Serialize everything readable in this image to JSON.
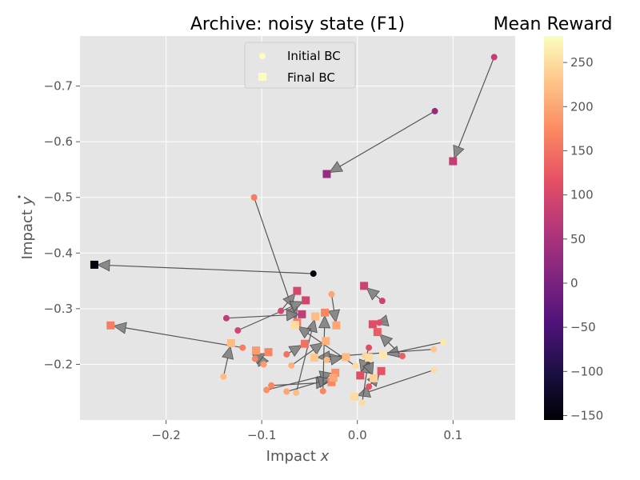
{
  "chart_data": {
    "type": "scatter",
    "title": "Archive: noisy state (F1)",
    "xlabel": "Impact $x$",
    "ylabel": "Impact $\\dot{y}$",
    "xlabel_parts": [
      "Impact ",
      "x"
    ],
    "ylabel_parts": [
      "Impact ",
      "y"
    ],
    "xlim": [
      -0.29,
      0.165
    ],
    "ylim": [
      -0.1,
      -0.79
    ],
    "y_inverted": true,
    "x_ticks": [
      -0.2,
      -0.1,
      0.0,
      0.1
    ],
    "x_tick_labels": [
      "−0.2",
      "−0.1",
      "0.0",
      "0.1"
    ],
    "y_ticks": [
      -0.2,
      -0.3,
      -0.4,
      -0.5,
      -0.6,
      -0.7
    ],
    "y_tick_labels": [
      "−0.2",
      "−0.3",
      "−0.4",
      "−0.5",
      "−0.6",
      "−0.7"
    ],
    "grid": true,
    "legend": {
      "placement": "top-center",
      "entries": [
        "Initial BC",
        "Final BC"
      ]
    },
    "colorbar": {
      "label": "Mean Reward",
      "range": [
        -155,
        280
      ],
      "ticks": [
        -150,
        -100,
        -50,
        0,
        50,
        100,
        150,
        200,
        250
      ],
      "tick_labels": [
        "−150",
        "−100",
        "−50",
        "0",
        "50",
        "100",
        "150",
        "200",
        "250"
      ]
    },
    "colormap": "magma",
    "colors": {
      "background": "#e5e5e5",
      "grid": "#ffffff",
      "arrow": "#555555",
      "arrowhead": "#808080"
    },
    "series": [
      {
        "initial": [
          0.143,
          -0.752
        ],
        "final": [
          0.1,
          -0.565
        ],
        "reward": 80
      },
      {
        "initial": [
          0.081,
          -0.655
        ],
        "final": [
          -0.032,
          -0.542
        ],
        "reward": 30
      },
      {
        "initial": [
          -0.108,
          -0.5
        ],
        "final": [
          -0.063,
          -0.275
        ],
        "reward": 160
      },
      {
        "initial": [
          -0.046,
          -0.363
        ],
        "final": [
          -0.275,
          -0.379
        ],
        "reward": -150
      },
      {
        "initial": [
          -0.027,
          -0.326
        ],
        "final": [
          -0.022,
          -0.27
        ],
        "reward": 200
      },
      {
        "initial": [
          0.026,
          -0.314
        ],
        "final": [
          0.007,
          -0.341
        ],
        "reward": 90
      },
      {
        "initial": [
          -0.08,
          -0.296
        ],
        "final": [
          -0.063,
          -0.332
        ],
        "reward": 100
      },
      {
        "initial": [
          -0.137,
          -0.283
        ],
        "final": [
          -0.058,
          -0.29
        ],
        "reward": 75
      },
      {
        "initial": [
          -0.125,
          -0.261
        ],
        "final": [
          -0.054,
          -0.315
        ],
        "reward": 95
      },
      {
        "initial": [
          0.023,
          -0.275
        ],
        "final": [
          0.016,
          -0.272
        ],
        "reward": 110
      },
      {
        "initial": [
          0.047,
          -0.215
        ],
        "final": [
          0.021,
          -0.258
        ],
        "reward": 130
      },
      {
        "initial": [
          0.09,
          -0.24
        ],
        "final": [
          0.027,
          -0.217
        ],
        "reward": 260
      },
      {
        "initial": [
          0.08,
          -0.227
        ],
        "final": [
          -0.045,
          -0.212
        ],
        "reward": 230
      },
      {
        "initial": [
          0.08,
          -0.19
        ],
        "final": [
          -0.003,
          -0.142
        ],
        "reward": 250
      },
      {
        "initial": [
          -0.14,
          -0.178
        ],
        "final": [
          -0.132,
          -0.238
        ],
        "reward": 220
      },
      {
        "initial": [
          -0.12,
          -0.23
        ],
        "final": [
          -0.258,
          -0.27
        ],
        "reward": 160
      },
      {
        "initial": [
          -0.098,
          -0.2
        ],
        "final": [
          -0.106,
          -0.225
        ],
        "reward": 190
      },
      {
        "initial": [
          -0.107,
          -0.21
        ],
        "final": [
          -0.093,
          -0.222
        ],
        "reward": 170
      },
      {
        "initial": [
          -0.074,
          -0.218
        ],
        "final": [
          -0.055,
          -0.237
        ],
        "reward": 150
      },
      {
        "initial": [
          -0.069,
          -0.198
        ],
        "final": [
          -0.033,
          -0.242
        ],
        "reward": 210
      },
      {
        "initial": [
          -0.095,
          -0.154
        ],
        "final": [
          -0.023,
          -0.185
        ],
        "reward": 180
      },
      {
        "initial": [
          -0.09,
          -0.162
        ],
        "final": [
          -0.027,
          -0.168
        ],
        "reward": 170
      },
      {
        "initial": [
          -0.074,
          -0.151
        ],
        "final": [
          -0.025,
          -0.176
        ],
        "reward": 200
      },
      {
        "initial": [
          -0.064,
          -0.149
        ],
        "final": [
          -0.044,
          -0.286
        ],
        "reward": 220
      },
      {
        "initial": [
          -0.036,
          -0.152
        ],
        "final": [
          -0.034,
          -0.293
        ],
        "reward": 170
      },
      {
        "initial": [
          -0.032,
          -0.208
        ],
        "final": [
          -0.012,
          -0.213
        ],
        "reward": 220
      },
      {
        "initial": [
          0.012,
          -0.23
        ],
        "final": [
          0.003,
          -0.18
        ],
        "reward": 110
      },
      {
        "initial": [
          0.012,
          -0.16
        ],
        "final": [
          0.025,
          -0.188
        ],
        "reward": 120
      },
      {
        "initial": [
          0.005,
          -0.131
        ],
        "final": [
          0.012,
          -0.212
        ],
        "reward": 250
      },
      {
        "initial": [
          -0.002,
          -0.197
        ],
        "final": [
          -0.065,
          -0.271
        ],
        "reward": 250
      },
      {
        "initial": [
          0.008,
          -0.216
        ],
        "final": [
          0.017,
          -0.175
        ],
        "reward": 240
      }
    ]
  }
}
